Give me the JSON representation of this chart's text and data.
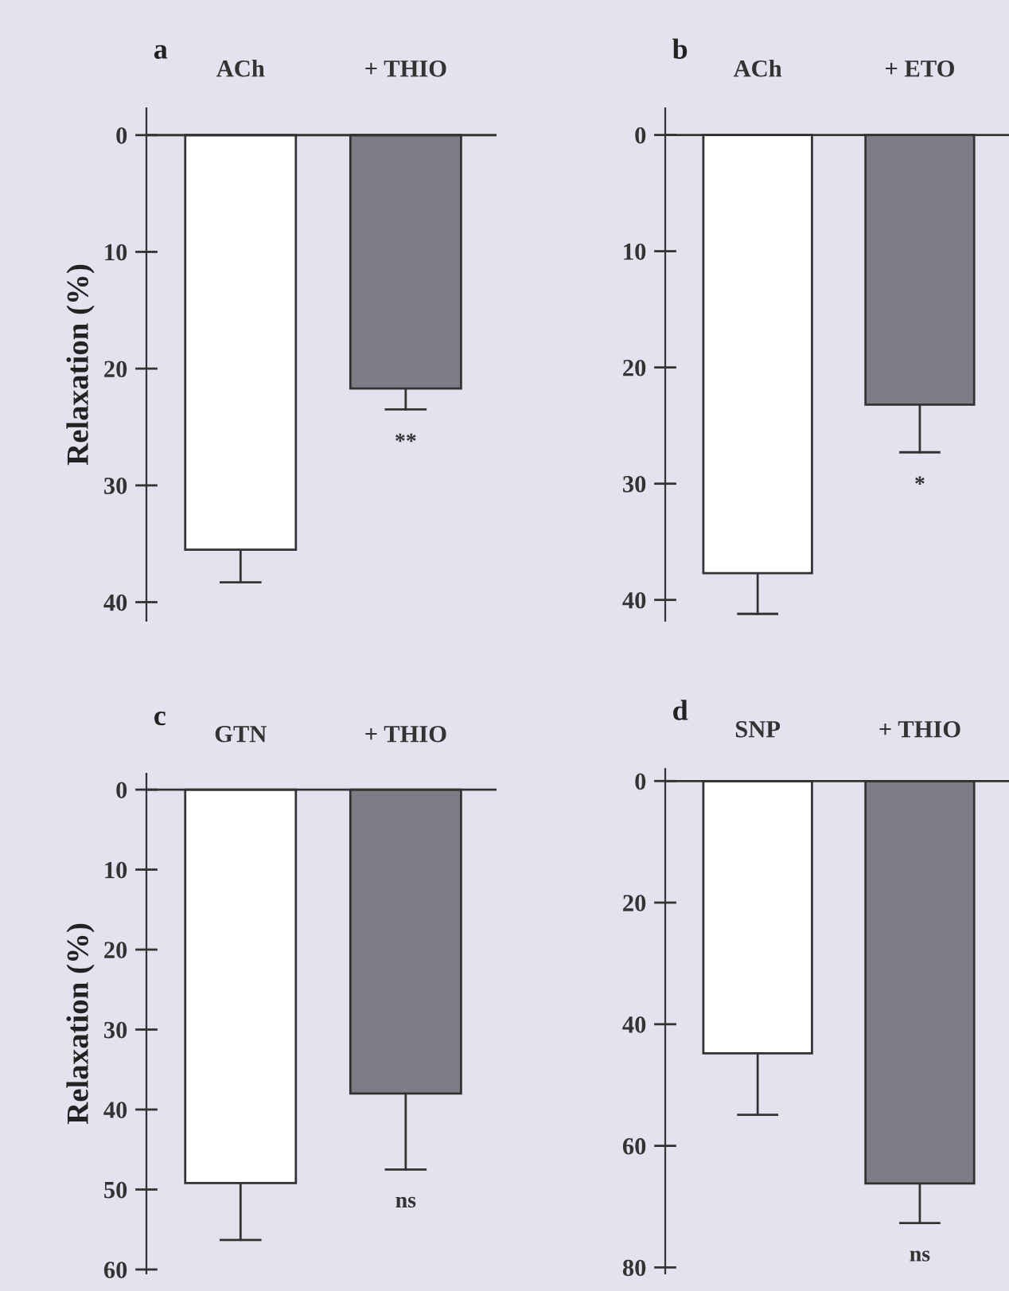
{
  "chart_data": [
    {
      "type": "bar",
      "title": "a",
      "ylabel": "Relaxation (%)",
      "categories": [
        "ACh",
        "+ THIO"
      ],
      "values": [
        35.5,
        21.7
      ],
      "colors": [
        "#ffffff",
        "#7d7d87"
      ],
      "errors": [
        [
          35.5,
          38.3
        ],
        [
          21.7,
          23.5
        ]
      ],
      "ylim": [
        41.6,
        -2.3
      ],
      "yticks": [
        0,
        10,
        20,
        30,
        40
      ],
      "annotations": [
        "**"
      ]
    },
    {
      "type": "bar",
      "title": "b",
      "categories": [
        "ACh",
        "+ ETO"
      ],
      "values": [
        37.7,
        23.2
      ],
      "colors": [
        "#ffffff",
        "#7d7d87"
      ],
      "errors": [
        [
          37.7,
          41.2
        ],
        [
          23.2,
          27.3
        ]
      ],
      "ylim": [
        41.8,
        -2.3
      ],
      "yticks": [
        0,
        10,
        20,
        30,
        40
      ],
      "annotations": [
        "*"
      ]
    },
    {
      "type": "bar",
      "title": "c",
      "ylabel": "Relaxation (%)",
      "categories": [
        "GTN",
        "+ THIO"
      ],
      "values": [
        49.2,
        38.0
      ],
      "colors": [
        "#ffffff",
        "#7d7d87"
      ],
      "errors": [
        [
          49.2,
          56.3
        ],
        [
          38.0,
          47.5
        ]
      ],
      "ylim": [
        60.5,
        -2
      ],
      "yticks": [
        0,
        10,
        20,
        30,
        40,
        50,
        60
      ],
      "annotations": [
        "ns"
      ]
    },
    {
      "type": "bar",
      "title": "d",
      "categories": [
        "SNP",
        "+ THIO"
      ],
      "values": [
        44.8,
        66.2
      ],
      "colors": [
        "#ffffff",
        "#7d7d87"
      ],
      "errors": [
        [
          44.8,
          54.9
        ],
        [
          66.2,
          72.7
        ]
      ],
      "ylim": [
        81,
        -2
      ],
      "yticks": [
        0,
        20,
        40,
        60,
        80
      ],
      "annotations": [
        "ns"
      ]
    }
  ]
}
